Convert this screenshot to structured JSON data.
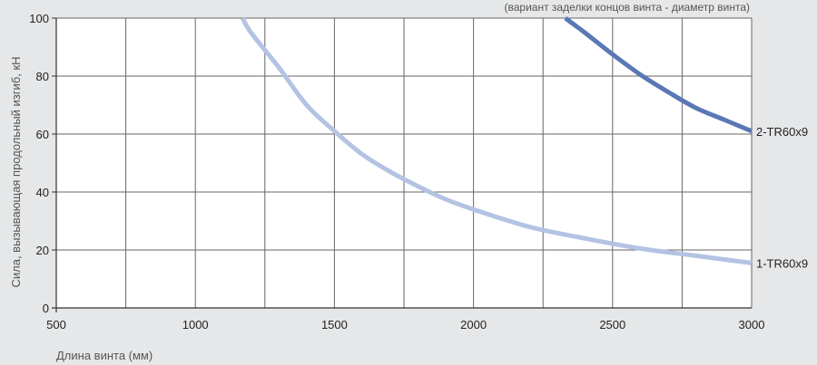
{
  "chart_data": {
    "type": "line",
    "subtitle": "(вариант заделки концов винта - диаметр винта)",
    "xlabel": "Длина винта (мм)",
    "ylabel": "Сила, вызывающая продольный изгиб, кН",
    "xlim": [
      500,
      3000
    ],
    "ylim": [
      0,
      100
    ],
    "xticks": [
      500,
      1000,
      1500,
      2000,
      2500,
      3000
    ],
    "yticks": [
      0,
      20,
      40,
      60,
      80,
      100
    ],
    "grid": true,
    "legend": "none",
    "series": [
      {
        "name": "1-TR60x9",
        "color": "#b4c3e3",
        "x": [
          1170,
          1200,
          1300,
          1400,
          1500,
          1600,
          1700,
          1800,
          1900,
          2000,
          2200,
          2400,
          2600,
          2800,
          3000
        ],
        "y": [
          100,
          95,
          83,
          70,
          61,
          53,
          47,
          42,
          37.5,
          34,
          28,
          24,
          20.5,
          18,
          15.5
        ]
      },
      {
        "name": "2-TR60x9",
        "color": "#5a78b4",
        "x": [
          2330,
          2400,
          2500,
          2600,
          2700,
          2800,
          2900,
          3000
        ],
        "y": [
          100,
          95,
          87.5,
          80.5,
          74.5,
          69,
          65,
          61
        ]
      }
    ]
  }
}
